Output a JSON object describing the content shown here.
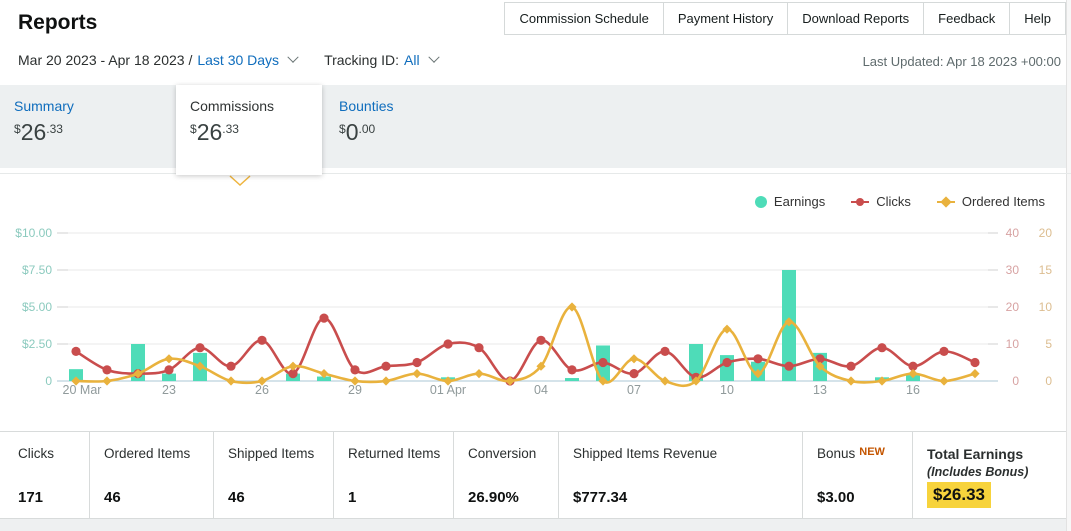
{
  "header": {
    "title": "Reports",
    "nav": [
      "Commission Schedule",
      "Payment History",
      "Download Reports",
      "Feedback",
      "Help"
    ],
    "last_updated": "Last Updated: Apr 18 2023 +00:00"
  },
  "filters": {
    "range_prefix": "Mar 20 2023 - Apr 18 2023 /",
    "period": "Last 30 Days",
    "tracking_label": "Tracking ID:",
    "tracking_value": "All"
  },
  "tabs": [
    {
      "label": "Summary",
      "symbol": "$",
      "int": "26",
      "frac": ".33",
      "selected": false
    },
    {
      "label": "Commissions",
      "symbol": "$",
      "int": "26",
      "frac": ".33",
      "selected": true
    },
    {
      "label": "Bounties",
      "symbol": "$",
      "int": "0",
      "frac": ".00",
      "selected": false
    }
  ],
  "chart_data": {
    "type": "combo-bar-line",
    "n_points": 30,
    "x_start": "Mar 20 2023",
    "x_end": "Apr 18 2023",
    "x_tick_labels": [
      "20 Mar",
      "23",
      "26",
      "29",
      "01 Apr",
      "04",
      "07",
      "10",
      "13",
      "16"
    ],
    "x_tick_positions": [
      0,
      3,
      6,
      9,
      12,
      15,
      18,
      21,
      24,
      27
    ],
    "left_axis": {
      "labels": [
        "$10.00",
        "$7.50",
        "$5.00",
        "$2.50",
        "0"
      ],
      "max": 10,
      "title": "Earnings ($)"
    },
    "right_axis_1": {
      "labels": [
        "40",
        "30",
        "20",
        "10",
        "0"
      ],
      "max": 40,
      "title": "Clicks"
    },
    "right_axis_2": {
      "labels": [
        "20",
        "15",
        "10",
        "5",
        "0"
      ],
      "max": 20,
      "title": "Ordered Items"
    },
    "grid": "horizontal-only",
    "legend_position": "top-right",
    "series": [
      {
        "name": "Earnings",
        "type": "bar",
        "axis": "left",
        "color": "#4edcb8",
        "values": [
          0.8,
          0,
          2.5,
          0.5,
          1.9,
          0,
          0,
          0.5,
          0.3,
          0,
          0,
          0,
          0.25,
          0,
          0,
          0,
          0.2,
          2.4,
          0,
          0,
          2.5,
          1.75,
          1.3,
          7.5,
          1.9,
          0,
          0.25,
          0.4,
          0,
          0
        ]
      },
      {
        "name": "Clicks",
        "type": "line",
        "axis": "right1",
        "color": "#c94d4d",
        "marker": "circle",
        "values": [
          8,
          3,
          2,
          3,
          9,
          4,
          11,
          2,
          17,
          3,
          4,
          5,
          10,
          9,
          0,
          11,
          3,
          5,
          2,
          8,
          1,
          5,
          6,
          4,
          6,
          4,
          9,
          4,
          8,
          5
        ]
      },
      {
        "name": "Ordered Items",
        "type": "line",
        "axis": "right2",
        "color": "#e9b23d",
        "marker": "diamond",
        "values": [
          0,
          0,
          1,
          3,
          2,
          0,
          0,
          2,
          1,
          0,
          0,
          1,
          0,
          1,
          0,
          2,
          10,
          0,
          3,
          0,
          0,
          7,
          1,
          8,
          2,
          0,
          0,
          1,
          0,
          1
        ]
      }
    ]
  },
  "stats": {
    "columns": [
      {
        "label": "Clicks",
        "value": "171"
      },
      {
        "label": "Ordered Items",
        "value": "46"
      },
      {
        "label": "Shipped Items",
        "value": "46"
      },
      {
        "label": "Returned Items",
        "value": "1"
      },
      {
        "label": "Conversion",
        "value": "26.90%"
      },
      {
        "label": "Shipped Items Revenue",
        "value": "$777.34"
      },
      {
        "label": "Bonus",
        "badge": "NEW",
        "value": "$3.00"
      },
      {
        "label": "Total Earnings",
        "sublabel": "(Includes Bonus)",
        "value": "$26.33",
        "highlighted": true,
        "bold_label": true
      }
    ]
  },
  "colors": {
    "link_blue": "#0f6dbd",
    "earnings_teal": "#4edcb8",
    "clicks_red": "#c94d4d",
    "ordered_yellow": "#e9b23d",
    "highlight_yellow": "#f7d33c",
    "new_badge_orange": "#c45500",
    "band_gray": "#edf0f1"
  }
}
